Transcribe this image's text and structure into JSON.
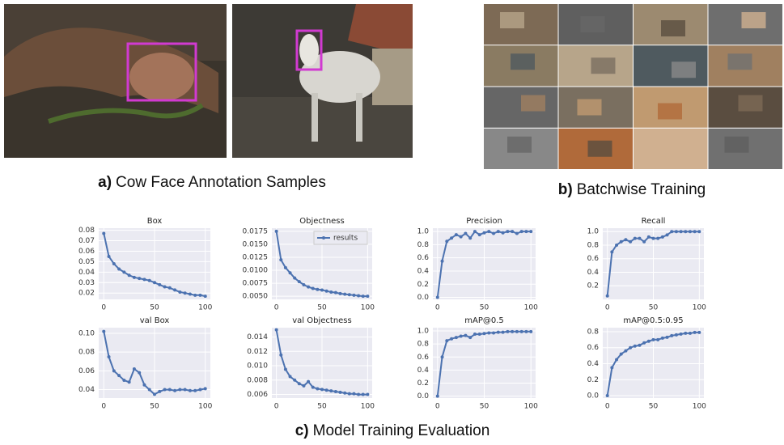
{
  "captions": [
    {
      "label": "a)",
      "text": "Cow Face Annotation Samples"
    },
    {
      "label": "b)",
      "text": "Batchwise Training"
    },
    {
      "label": "c)",
      "text": "Model Training Evaluation"
    }
  ],
  "chart_data": [
    {
      "type": "line",
      "title": "Box",
      "color": "#4c72b0",
      "grid": true,
      "x": [
        0,
        5,
        10,
        15,
        20,
        25,
        30,
        35,
        40,
        45,
        50,
        55,
        60,
        65,
        70,
        75,
        80,
        85,
        90,
        95,
        100
      ],
      "values": [
        0.077,
        0.055,
        0.048,
        0.043,
        0.04,
        0.037,
        0.035,
        0.034,
        0.033,
        0.032,
        0.03,
        0.028,
        0.026,
        0.025,
        0.023,
        0.021,
        0.02,
        0.019,
        0.018,
        0.018,
        0.017
      ],
      "xlim": [
        -5,
        105
      ],
      "xticks": [
        0,
        50,
        100
      ],
      "ylim": [
        0.014,
        0.082
      ],
      "yticks": [
        0.02,
        0.03,
        0.04,
        0.05,
        0.06,
        0.07,
        0.08
      ]
    },
    {
      "type": "line",
      "title": "Objectness",
      "grid": true,
      "legend": "upper right",
      "x": [
        0,
        5,
        10,
        15,
        20,
        25,
        30,
        35,
        40,
        45,
        50,
        55,
        60,
        65,
        70,
        75,
        80,
        85,
        90,
        95,
        100
      ],
      "series": [
        {
          "name": "results",
          "color": "#4c72b0",
          "values": [
            0.0175,
            0.012,
            0.0105,
            0.0095,
            0.0085,
            0.0078,
            0.0072,
            0.0068,
            0.0065,
            0.0063,
            0.0062,
            0.006,
            0.0058,
            0.0057,
            0.0055,
            0.0054,
            0.0053,
            0.0052,
            0.0051,
            0.005,
            0.005
          ]
        }
      ],
      "xlim": [
        -5,
        105
      ],
      "xticks": [
        0,
        50,
        100
      ],
      "ylim": [
        0.0044,
        0.0181
      ],
      "yticks": [
        {
          "value": 0.005,
          "label": "0.0050"
        },
        0.0075,
        {
          "value": 0.01,
          "label": "0.0100"
        },
        0.0125,
        {
          "value": 0.015,
          "label": "0.0150"
        },
        0.0175
      ]
    },
    {
      "type": "line",
      "title": "Precision",
      "color": "#4c72b0",
      "grid": true,
      "x": [
        0,
        5,
        10,
        15,
        20,
        25,
        30,
        35,
        40,
        45,
        50,
        55,
        60,
        65,
        70,
        75,
        80,
        85,
        90,
        95,
        100
      ],
      "values": [
        0.0,
        0.55,
        0.85,
        0.9,
        0.95,
        0.92,
        0.97,
        0.9,
        1.0,
        0.95,
        0.98,
        1.0,
        0.97,
        1.0,
        0.98,
        1.0,
        1.0,
        0.97,
        1.0,
        1.0,
        1.0
      ],
      "xlim": [
        -5,
        105
      ],
      "xticks": [
        0,
        50,
        100
      ],
      "ylim": [
        -0.03,
        1.05
      ],
      "yticks": [
        {
          "value": 0,
          "label": "0.0"
        },
        0.2,
        0.4,
        0.6,
        0.8,
        {
          "value": 1,
          "label": "1.0"
        }
      ]
    },
    {
      "type": "line",
      "title": "Recall",
      "color": "#4c72b0",
      "grid": true,
      "x": [
        0,
        5,
        10,
        15,
        20,
        25,
        30,
        35,
        40,
        45,
        50,
        55,
        60,
        65,
        70,
        75,
        80,
        85,
        90,
        95,
        100
      ],
      "values": [
        0.05,
        0.7,
        0.8,
        0.85,
        0.88,
        0.85,
        0.9,
        0.9,
        0.85,
        0.92,
        0.9,
        0.9,
        0.92,
        0.95,
        1.0,
        1.0,
        1.0,
        1.0,
        1.0,
        1.0,
        1.0
      ],
      "xlim": [
        -5,
        105
      ],
      "xticks": [
        0,
        50,
        100
      ],
      "ylim": [
        0,
        1.05
      ],
      "yticks": [
        0.2,
        0.4,
        0.6,
        0.8,
        {
          "value": 1,
          "label": "1.0"
        }
      ]
    },
    {
      "type": "line",
      "title": "val Box",
      "color": "#4c72b0",
      "grid": true,
      "x": [
        0,
        5,
        10,
        15,
        20,
        25,
        30,
        35,
        40,
        45,
        50,
        55,
        60,
        65,
        70,
        75,
        80,
        85,
        90,
        95,
        100
      ],
      "values": [
        0.102,
        0.075,
        0.06,
        0.055,
        0.05,
        0.048,
        0.062,
        0.058,
        0.045,
        0.04,
        0.035,
        0.038,
        0.04,
        0.04,
        0.039,
        0.04,
        0.04,
        0.039,
        0.039,
        0.04,
        0.041
      ],
      "xlim": [
        -5,
        105
      ],
      "xticks": [
        0,
        50,
        100
      ],
      "ylim": [
        0.031,
        0.106
      ],
      "yticks": [
        0.04,
        0.06,
        0.08,
        {
          "value": 0.1,
          "label": "0.10"
        }
      ]
    },
    {
      "type": "line",
      "title": "val Objectness",
      "color": "#4c72b0",
      "grid": true,
      "x": [
        0,
        5,
        10,
        15,
        20,
        25,
        30,
        35,
        40,
        45,
        50,
        55,
        60,
        65,
        70,
        75,
        80,
        85,
        90,
        95,
        100
      ],
      "values": [
        0.015,
        0.0115,
        0.0095,
        0.0085,
        0.008,
        0.0075,
        0.0072,
        0.0078,
        0.007,
        0.0068,
        0.0067,
        0.0066,
        0.0065,
        0.0064,
        0.0063,
        0.0062,
        0.0061,
        0.0061,
        0.006,
        0.006,
        0.006
      ],
      "xlim": [
        -5,
        105
      ],
      "xticks": [
        0,
        50,
        100
      ],
      "ylim": [
        0.0055,
        0.0153
      ],
      "yticks": [
        0.006,
        0.008,
        {
          "value": 0.01,
          "label": "0.010"
        },
        0.012,
        0.014
      ]
    },
    {
      "type": "line",
      "title": "mAP@0.5",
      "color": "#4c72b0",
      "grid": true,
      "x": [
        0,
        5,
        10,
        15,
        20,
        25,
        30,
        35,
        40,
        45,
        50,
        55,
        60,
        65,
        70,
        75,
        80,
        85,
        90,
        95,
        100
      ],
      "values": [
        0.0,
        0.6,
        0.85,
        0.88,
        0.9,
        0.92,
        0.93,
        0.9,
        0.95,
        0.95,
        0.96,
        0.97,
        0.97,
        0.98,
        0.98,
        0.99,
        0.99,
        0.99,
        0.99,
        0.99,
        0.99
      ],
      "xlim": [
        -5,
        105
      ],
      "xticks": [
        0,
        50,
        100
      ],
      "ylim": [
        -0.03,
        1.05
      ],
      "yticks": [
        {
          "value": 0,
          "label": "0.0"
        },
        0.2,
        0.4,
        0.6,
        0.8,
        {
          "value": 1,
          "label": "1.0"
        }
      ]
    },
    {
      "type": "line",
      "title": "mAP@0.5:0.95",
      "color": "#4c72b0",
      "grid": true,
      "x": [
        0,
        5,
        10,
        15,
        20,
        25,
        30,
        35,
        40,
        45,
        50,
        55,
        60,
        65,
        70,
        75,
        80,
        85,
        90,
        95,
        100
      ],
      "values": [
        0.0,
        0.35,
        0.45,
        0.52,
        0.56,
        0.6,
        0.62,
        0.63,
        0.66,
        0.68,
        0.7,
        0.7,
        0.72,
        0.73,
        0.75,
        0.76,
        0.77,
        0.78,
        0.78,
        0.79,
        0.79
      ],
      "xlim": [
        -5,
        105
      ],
      "xticks": [
        0,
        50,
        100
      ],
      "ylim": [
        -0.03,
        0.85
      ],
      "yticks": [
        {
          "value": 0,
          "label": "0.0"
        },
        0.2,
        0.4,
        0.6,
        0.8
      ]
    }
  ]
}
